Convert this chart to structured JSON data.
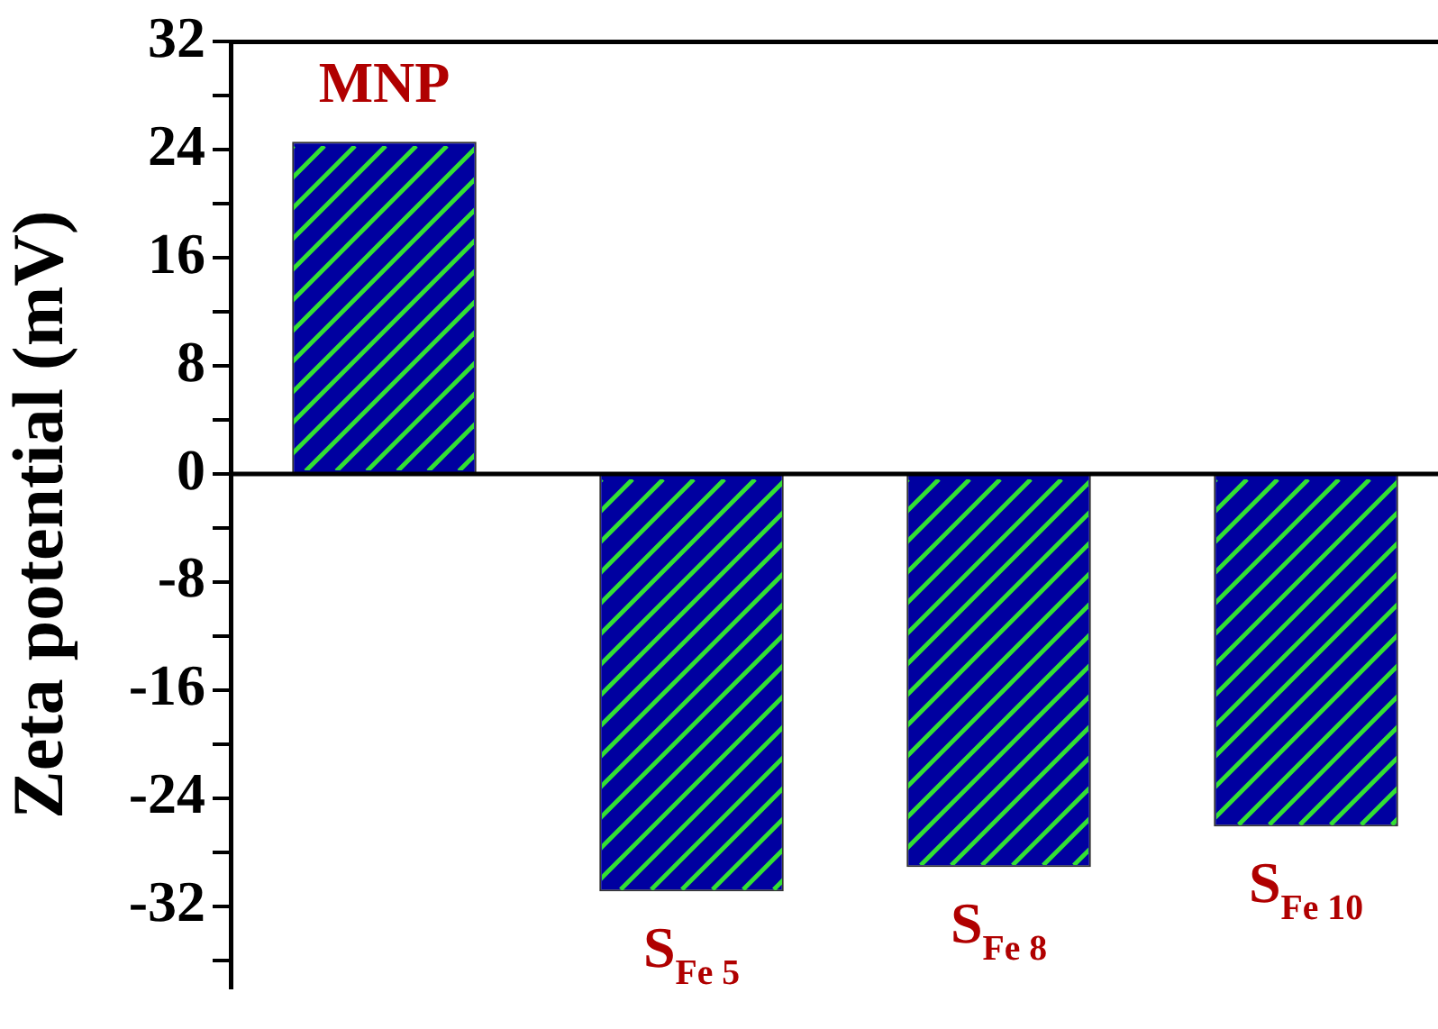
{
  "chart_data": {
    "type": "bar",
    "ylabel": "Zeta potential (mV)",
    "categories": [
      "MNP",
      "S$_{Fe 5}$",
      "S$_{Fe 8}$",
      "S$_{Fe 10}$"
    ],
    "values": [
      24.6,
      -30.9,
      -29.1,
      -26.1
    ],
    "color": "#0000a0",
    "ylim": [
      -38,
      32
    ],
    "yticks": [
      {
        "value": -36,
        "label": null
      },
      -32,
      {
        "value": -28,
        "label": null
      },
      -24,
      {
        "value": -20,
        "label": null
      },
      -16,
      {
        "value": -12,
        "label": null
      },
      -8,
      {
        "value": -4,
        "label": null
      },
      0,
      {
        "value": 4,
        "label": null
      },
      8,
      {
        "value": 12,
        "label": null
      },
      16,
      {
        "value": 20,
        "label": null
      },
      24,
      {
        "value": 28,
        "label": null
      },
      32
    ],
    "ref_lines": [
      {
        "axis": "y",
        "value": 0,
        "color": "#000000"
      }
    ],
    "grid": false,
    "legend": false
  }
}
